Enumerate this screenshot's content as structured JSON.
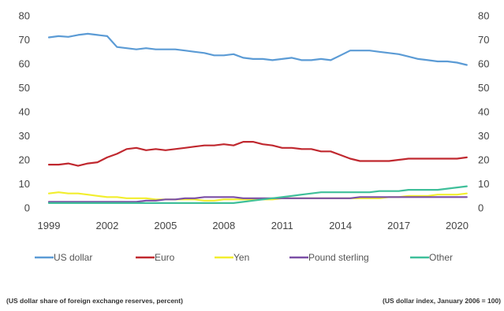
{
  "chart_data": {
    "type": "line",
    "title": "",
    "xlabel": "",
    "ylabel": "",
    "ylim": [
      0,
      80
    ],
    "ylim_right": [
      0,
      80
    ],
    "xlim": [
      1999,
      2020.75
    ],
    "x_ticks": [
      1999,
      2002,
      2005,
      2008,
      2011,
      2014,
      2017,
      2020
    ],
    "x_tick_labels": [
      "1999",
      "2002",
      "2005",
      "2008",
      "2011",
      "2014",
      "2017",
      "2020"
    ],
    "y_ticks": [
      0,
      10,
      20,
      30,
      40,
      50,
      60,
      70,
      80
    ],
    "grid": false,
    "legend_position": "bottom",
    "x": [
      1999,
      1999.5,
      2000,
      2000.5,
      2001,
      2001.5,
      2002,
      2002.5,
      2003,
      2003.5,
      2004,
      2004.5,
      2005,
      2005.5,
      2006,
      2006.5,
      2007,
      2007.5,
      2008,
      2008.5,
      2009,
      2009.5,
      2010,
      2010.5,
      2011,
      2011.5,
      2012,
      2012.5,
      2013,
      2013.5,
      2014,
      2014.5,
      2015,
      2015.5,
      2016,
      2016.5,
      2017,
      2017.5,
      2018,
      2018.5,
      2019,
      2019.5,
      2020,
      2020.5
    ],
    "series": [
      {
        "name": "US dollar",
        "color": "#5b9bd5",
        "values": [
          71.0,
          71.5,
          71.2,
          72.0,
          72.5,
          72.0,
          71.5,
          67.0,
          66.5,
          66.0,
          66.5,
          66.0,
          66.0,
          66.0,
          65.5,
          65.0,
          64.5,
          63.5,
          63.5,
          64.0,
          62.5,
          62.0,
          62.0,
          61.5,
          62.0,
          62.5,
          61.5,
          61.5,
          62.0,
          61.5,
          63.5,
          65.5,
          65.5,
          65.5,
          65.0,
          64.5,
          64.0,
          63.0,
          62.0,
          61.5,
          61.0,
          61.0,
          60.5,
          59.5
        ]
      },
      {
        "name": "Euro",
        "color": "#c0282f",
        "values": [
          18.0,
          18.0,
          18.5,
          17.5,
          18.5,
          19.0,
          21.0,
          22.5,
          24.5,
          25.0,
          24.0,
          24.5,
          24.0,
          24.5,
          25.0,
          25.5,
          26.0,
          26.0,
          26.5,
          26.0,
          27.5,
          27.5,
          26.5,
          26.0,
          25.0,
          25.0,
          24.5,
          24.5,
          23.5,
          23.5,
          22.0,
          20.5,
          19.5,
          19.5,
          19.5,
          19.5,
          20.0,
          20.5,
          20.5,
          20.5,
          20.5,
          20.5,
          20.5,
          21.0
        ]
      },
      {
        "name": "Yen",
        "color": "#f2ee2e",
        "values": [
          6.0,
          6.5,
          6.0,
          6.0,
          5.5,
          5.0,
          4.5,
          4.5,
          4.0,
          4.0,
          4.0,
          3.5,
          3.5,
          3.5,
          3.5,
          3.5,
          3.0,
          3.0,
          3.5,
          3.5,
          3.5,
          3.5,
          3.5,
          3.5,
          4.0,
          4.0,
          4.0,
          4.0,
          4.0,
          4.0,
          4.0,
          4.0,
          4.0,
          4.0,
          4.0,
          4.5,
          4.5,
          5.0,
          5.0,
          5.0,
          5.5,
          5.5,
          5.5,
          6.0
        ]
      },
      {
        "name": "Pound sterling",
        "color": "#7b4fa6",
        "values": [
          2.5,
          2.5,
          2.5,
          2.5,
          2.5,
          2.5,
          2.5,
          2.5,
          2.5,
          2.5,
          3.0,
          3.0,
          3.5,
          3.5,
          4.0,
          4.0,
          4.5,
          4.5,
          4.5,
          4.5,
          4.0,
          4.0,
          4.0,
          4.0,
          4.0,
          4.0,
          4.0,
          4.0,
          4.0,
          4.0,
          4.0,
          4.0,
          4.5,
          4.5,
          4.5,
          4.5,
          4.5,
          4.5,
          4.5,
          4.5,
          4.5,
          4.5,
          4.5,
          4.5
        ]
      },
      {
        "name": "Other",
        "color": "#3fbf9a",
        "values": [
          2.0,
          2.0,
          2.0,
          2.0,
          2.0,
          2.0,
          2.0,
          2.0,
          2.0,
          2.0,
          2.0,
          2.0,
          2.0,
          2.0,
          2.0,
          2.0,
          2.0,
          2.0,
          2.0,
          2.0,
          2.5,
          3.0,
          3.5,
          4.0,
          4.5,
          5.0,
          5.5,
          6.0,
          6.5,
          6.5,
          6.5,
          6.5,
          6.5,
          6.5,
          7.0,
          7.0,
          7.0,
          7.5,
          7.5,
          7.5,
          7.5,
          8.0,
          8.5,
          9.0
        ]
      }
    ]
  },
  "notes": {
    "left": "(US dollar share of foreign exchange reserves, percent)",
    "right": "(US dollar index, January 2006 = 100)"
  }
}
